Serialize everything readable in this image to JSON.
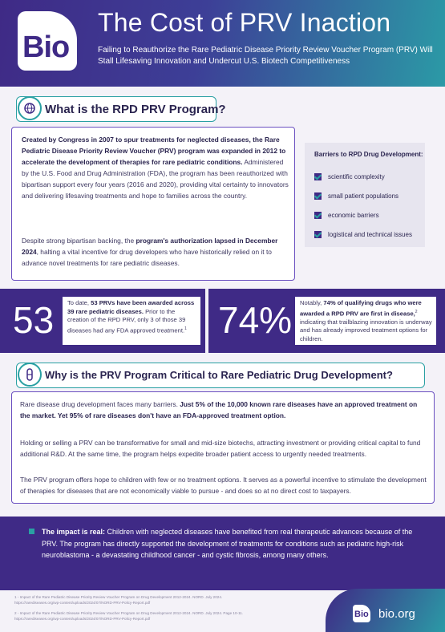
{
  "header": {
    "logo_text": "Bio",
    "title": "The Cost of PRV Inaction",
    "subtitle": "Failing to Reauthorize the Rare Pediatric Disease Priority Review Voucher Program (PRV) Will Stall Lifesaving Innovation and Undercut U.S. Biotech Competitiveness"
  },
  "section1": {
    "icon": "globe-network-icon",
    "title": "What is the RPD PRV Program?",
    "para1_bold": "Created by Congress in 2007 to spur treatments for neglected diseases, the Rare Pediatric Disease Priority Review Voucher (PRV) program was expanded in 2012 to accelerate the development of therapies for rare pediatric conditions.",
    "para1_rest": " Administered by the U.S. Food and Drug Administration (FDA), the program has been reauthorized with bipartisan support every four years (2016 and 2020), providing vital certainty to innovators and delivering lifesaving treatments and hope to families across the country.",
    "para2_a": "Despite strong bipartisan backing, the ",
    "para2_bold": "program's authorization lapsed in December 2024",
    "para2_b": ", halting a vital incentive for drug developers who have historically relied on it to advance novel treatments for rare pediatric diseases."
  },
  "barriers": {
    "title": "Barriers to RPD Drug Development:",
    "items": [
      "scientific complexity",
      "small patient populations",
      "economic barriers",
      "logistical and technical issues"
    ]
  },
  "stats": [
    {
      "number": "53",
      "text_a": "To date, ",
      "text_bold": "53 PRVs have been awarded across 39 rare pediatric diseases.",
      "text_b": " Prior to the creation of the RPD PRV, only 3 of those 39 diseases had any FDA approved treatment.",
      "sup": "1"
    },
    {
      "number": "74%",
      "text_a": "Notably, ",
      "text_bold": "74% of qualifying drugs who were awarded a RPD PRV are first in disease,",
      "sup": "2",
      "text_b": " indicating that trailblazing innovation is underway and has already improved treatment options for children."
    }
  ],
  "section2": {
    "icon": "pill-capsule-icon",
    "title": "Why is the PRV Program Critical to Rare Pediatric Drug Development?",
    "para1_a": "Rare disease drug development faces many barriers. ",
    "para1_bold": "Just 5% of the 10,000 known rare diseases have an approved treatment on the market. Yet 95% of rare diseases don't have an FDA-approved treatment option.",
    "para2": "Holding or selling a PRV can be transformative for small and mid-size biotechs, attracting investment or providing critical capital to fund additional R&D. At the same time, the program helps expedite broader patient access to urgently needed treatments.",
    "para3": "The PRV program offers hope to children with few or no treatment options. It serves as a powerful incentive to stimulate the development of therapies for diseases that are not economically viable to pursue - and does so at no direct cost to taxpayers."
  },
  "impact": {
    "bold": "The impact is real:",
    "text": " Children with neglected diseases have benefited from real therapeutic advances because of the PRV. The program has directly supported the development of treatments for conditions such as pediatric high-risk neuroblastoma - a devastating childhood cancer - and cystic fibrosis, among many others."
  },
  "footer": {
    "note1_line1": "1 - Impact of the Rare Pediatric Disease Priority Review Voucher Program on Drug Development 2012-2024. NORD. July 2024.",
    "note1_line2": "https://rarediseases.org/wp-content/uploads/2024/07/NORD-PRV-Policy-Report.pdf",
    "note2_line1": "2 - Impact of the Rare Pediatric Disease Priority Review Voucher Program on Drug Development 2012-2024. NORD. July 2024. Page 10-11.",
    "note2_line2": "https://rarediseases.org/wp-content/uploads/2024/07/NORD-PRV-Policy-Report.pdf",
    "logo_text": "Bio",
    "url": "bio.org"
  },
  "colors": {
    "brand_purple": "#3f2a86",
    "brand_teal": "#2aa0a3"
  }
}
